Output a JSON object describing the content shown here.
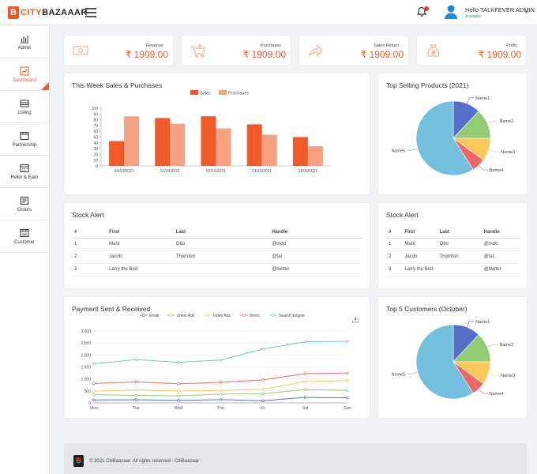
{
  "header": {
    "logo_prefix": "CITY",
    "logo_suffix": "BAZAAAR",
    "user_greeting": "Hello TALKFEVER ADMIN",
    "user_status": "Available"
  },
  "sidebar": {
    "items": [
      {
        "label": "Admin",
        "icon": "chart-icon"
      },
      {
        "label": "Dashboard",
        "icon": "dashboard-icon",
        "active": true
      },
      {
        "label": "Listing",
        "icon": "listing-icon"
      },
      {
        "label": "Partnership",
        "icon": "partnership-icon"
      },
      {
        "label": "Refer & Earn",
        "icon": "refer-icon"
      },
      {
        "label": "Orders",
        "icon": "orders-icon"
      },
      {
        "label": "Customer",
        "icon": "customer-icon"
      }
    ]
  },
  "stats": [
    {
      "label": "Revenue",
      "value": "₹ 1909.00",
      "icon": "cash-icon"
    },
    {
      "label": "Purchases",
      "value": "₹ 1909.00",
      "icon": "cart-icon"
    },
    {
      "label": "Sales Return",
      "value": "₹ 1909.00",
      "icon": "return-arrow-icon"
    },
    {
      "label": "Profit",
      "value": "₹ 1909.00",
      "icon": "money-bag-icon"
    }
  ],
  "sales_card": {
    "title": "This Week Sales & Purchases"
  },
  "top_products_card": {
    "title": "Top Selling Products (2021)"
  },
  "stock_alert_1": {
    "title": "Stock Alert",
    "columns": [
      "#",
      "First",
      "Last",
      "Handle"
    ],
    "rows": [
      [
        "1",
        "Mark",
        "Otto",
        "@mdo"
      ],
      [
        "2",
        "Jacob",
        "Thornton",
        "@fat"
      ],
      [
        "3",
        "Larry the Bird",
        "",
        "@twitter"
      ]
    ]
  },
  "stock_alert_2": {
    "title": "Stock Alert",
    "columns": [
      "#",
      "First",
      "Last",
      "Handle"
    ],
    "rows": [
      [
        "1",
        "Mark",
        "Otto",
        "@mdo"
      ],
      [
        "2",
        "Jacob",
        "Thornton",
        "@fat"
      ],
      [
        "3",
        "Larry the Bird",
        "",
        "@twitter"
      ]
    ]
  },
  "payment_card": {
    "title": "Payment Sent & Received"
  },
  "top_customers_card": {
    "title": "Top 5 Customers (October)"
  },
  "footer": {
    "text": "© 2021 CitiBaazaar. All rights reserved - CitiBaazaar"
  },
  "chart_data": [
    {
      "type": "bar",
      "title": "This Week Sales & Purchases",
      "categories": [
        "04/10/2021",
        "01/10/2021",
        "02/10/2021",
        "01/10/2021",
        "11/09/2021"
      ],
      "series": [
        {
          "name": "Sales",
          "values": [
            43,
            83,
            86,
            72,
            50
          ],
          "color": "#f05a28"
        },
        {
          "name": "Purchases",
          "values": [
            86,
            73,
            65,
            54,
            34
          ],
          "color": "#f5a182"
        }
      ],
      "ylim": [
        0,
        100
      ],
      "yticks": [
        0,
        10,
        20,
        30,
        40,
        50,
        60,
        70,
        80,
        90,
        100
      ],
      "legend": "top-center",
      "grid": false
    },
    {
      "type": "pie",
      "title": "Top Selling Products (2021)",
      "labels": [
        "Name1",
        "Name2",
        "Name3",
        "Name4",
        "Name5"
      ],
      "values": [
        12,
        13,
        10,
        6,
        59
      ],
      "colors": [
        "#5470c6",
        "#91cc75",
        "#fac858",
        "#ee6666",
        "#73c0de"
      ]
    },
    {
      "type": "line",
      "title": "Payment Sent & Received",
      "categories": [
        "Mon",
        "Tue",
        "Wed",
        "Thu",
        "Fri",
        "Sat",
        "Sun"
      ],
      "series": [
        {
          "name": "Email",
          "values": [
            120,
            132,
            101,
            134,
            90,
            230,
            210
          ],
          "color": "#5470c6"
        },
        {
          "name": "Union Ads",
          "values": [
            220,
            182,
            191,
            234,
            290,
            330,
            310
          ],
          "color": "#91cc75"
        },
        {
          "name": "Video Ads",
          "values": [
            150,
            232,
            201,
            154,
            190,
            330,
            410
          ],
          "color": "#fac858"
        },
        {
          "name": "Direct",
          "values": [
            320,
            332,
            301,
            334,
            390,
            330,
            320
          ],
          "color": "#ee6666"
        },
        {
          "name": "Search Engine",
          "values": [
            820,
            932,
            901,
            934,
            1290,
            1330,
            1320
          ],
          "color": "#73c0de"
        }
      ],
      "stacked": true,
      "ylim": [
        0,
        3000
      ],
      "yticks": [
        "0",
        "500",
        "1,000",
        "1,500",
        "2,000",
        "2,500",
        "3,000"
      ],
      "legend": "top-center",
      "grid": true
    },
    {
      "type": "pie",
      "title": "Top 5 Customers (October)",
      "labels": [
        "Name1",
        "Name2",
        "Name3",
        "Name4",
        "Name5"
      ],
      "values": [
        12,
        13,
        10,
        6,
        59
      ],
      "colors": [
        "#5470c6",
        "#91cc75",
        "#fac858",
        "#ee6666",
        "#73c0de"
      ]
    }
  ]
}
